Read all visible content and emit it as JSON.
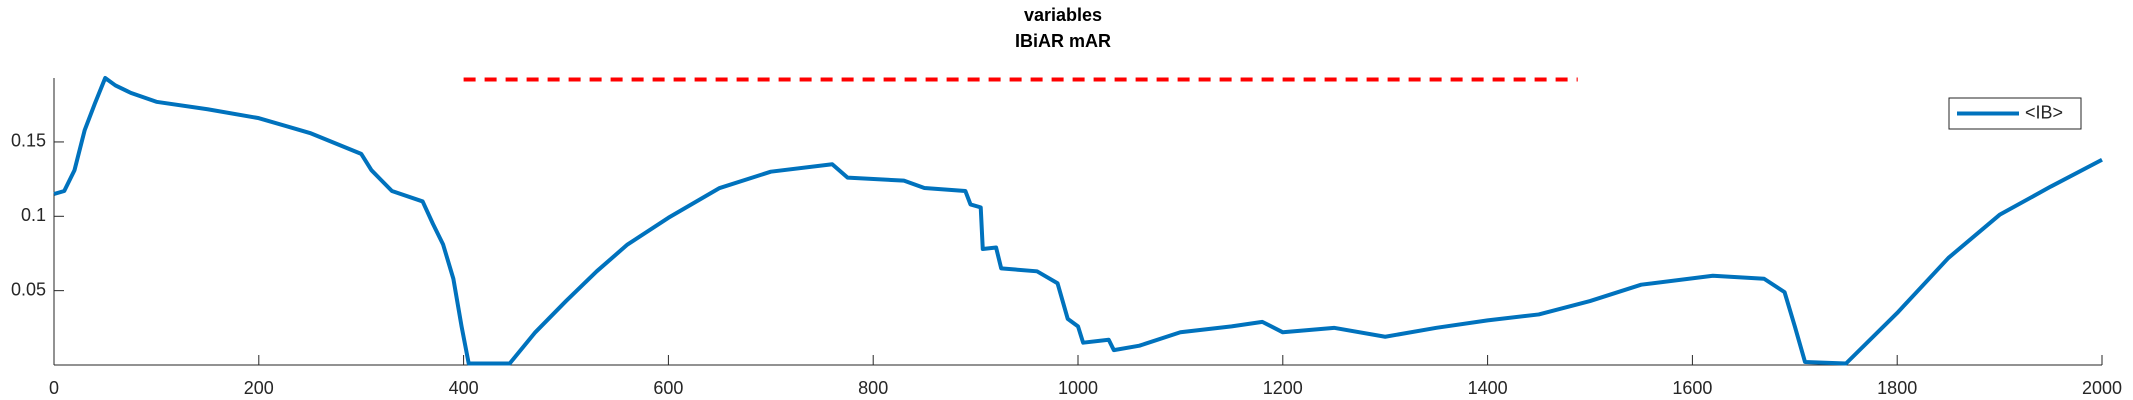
{
  "chart_data": {
    "type": "line",
    "title": "variables",
    "subtitle": "IBiAR mAR",
    "x": [
      0,
      10,
      20,
      30,
      40,
      50,
      60,
      75,
      100,
      150,
      200,
      250,
      300,
      310,
      330,
      360,
      370,
      380,
      390,
      398,
      405,
      445,
      470,
      500,
      530,
      560,
      600,
      650,
      700,
      760,
      775,
      830,
      850,
      890,
      895,
      905,
      907,
      920,
      925,
      960,
      980,
      990,
      1000,
      1005,
      1030,
      1035,
      1060,
      1100,
      1150,
      1180,
      1200,
      1250,
      1300,
      1350,
      1400,
      1450,
      1500,
      1550,
      1620,
      1670,
      1690,
      1700,
      1710,
      1750,
      1800,
      1850,
      1900,
      1950,
      2000
    ],
    "series": [
      {
        "name": "<IB>",
        "color": "#0072bd",
        "values": [
          0.115,
          0.117,
          0.131,
          0.158,
          0.176,
          0.193,
          0.188,
          0.183,
          0.177,
          0.172,
          0.166,
          0.156,
          0.142,
          0.131,
          0.117,
          0.11,
          0.095,
          0.081,
          0.058,
          0.026,
          0.001,
          0.001,
          0.022,
          0.043,
          0.063,
          0.081,
          0.099,
          0.119,
          0.13,
          0.135,
          0.126,
          0.124,
          0.119,
          0.117,
          0.108,
          0.106,
          0.078,
          0.079,
          0.065,
          0.063,
          0.055,
          0.031,
          0.026,
          0.015,
          0.017,
          0.01,
          0.013,
          0.022,
          0.026,
          0.029,
          0.022,
          0.025,
          0.019,
          0.025,
          0.03,
          0.034,
          0.043,
          0.054,
          0.06,
          0.058,
          0.049,
          0.026,
          0.002,
          0.001,
          0.035,
          0.072,
          0.101,
          0.12,
          0.138
        ]
      }
    ],
    "reference_line": {
      "x": [
        400,
        1488
      ],
      "y": 0.192,
      "color": "#ff0000"
    },
    "xlim": [
      0,
      2000
    ],
    "xticks": [
      0,
      200,
      400,
      600,
      800,
      1000,
      1200,
      1400,
      1600,
      1800,
      2000
    ],
    "ylim": [
      0,
      0.193
    ],
    "yticks": [
      0.05,
      0.1,
      0.15
    ],
    "legend": "top-right"
  }
}
